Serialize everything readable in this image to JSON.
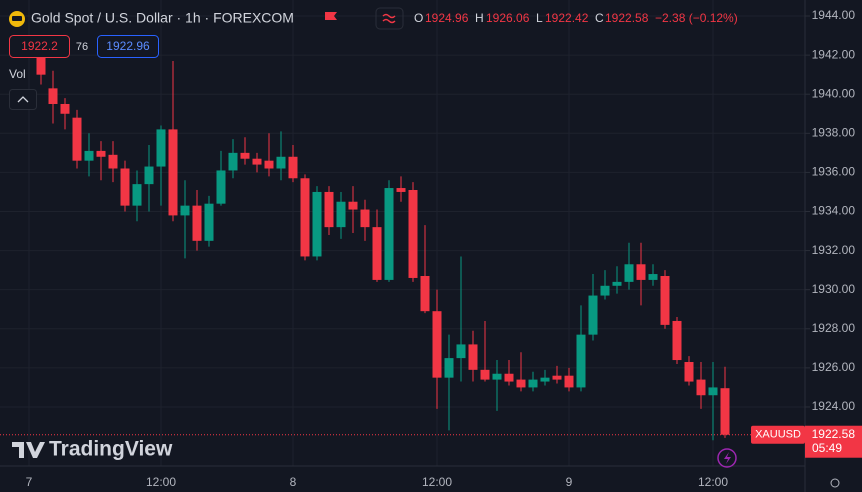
{
  "header": {
    "symbol": "Gold Spot / U.S. Dollar · 1h · FOREXCOM",
    "o_label": "O",
    "h_label": "H",
    "l_label": "L",
    "c_label": "C",
    "change": "−2.38 (−0.12%)",
    "sell_price": 1922.2,
    "spread": 76,
    "buy_price": 1922.96,
    "volume_label": "Vol"
  },
  "chart_data": {
    "type": "candlestick",
    "categories": [
      "7",
      null,
      null,
      null,
      null,
      null,
      null,
      null,
      null,
      null,
      null,
      "12:00",
      null,
      null,
      null,
      null,
      null,
      null,
      null,
      null,
      null,
      null,
      "8",
      null,
      null,
      null,
      null,
      null,
      null,
      null,
      null,
      null,
      null,
      null,
      "12:00",
      null,
      null,
      null,
      null,
      null,
      null,
      null,
      null,
      null,
      null,
      "9",
      null,
      null,
      null,
      null,
      null,
      null,
      null,
      null,
      null,
      null,
      null,
      "12:00",
      null
    ],
    "open": [
      null,
      1942.0,
      1940.3,
      1939.5,
      1938.8,
      1936.6,
      1937.1,
      1936.9,
      1936.2,
      1934.3,
      1935.4,
      1936.3,
      1938.2,
      1933.8,
      1934.3,
      1932.5,
      1934.4,
      1936.1,
      1937.0,
      1936.7,
      1936.6,
      1936.2,
      1936.8,
      1935.7,
      1931.7,
      1935.0,
      1933.2,
      1934.5,
      1934.1,
      1933.2,
      1930.5,
      1935.2,
      1935.1,
      1930.7,
      1928.9,
      1925.5,
      1926.5,
      1927.2,
      1925.9,
      1925.4,
      1925.7,
      1925.4,
      1925.0,
      1925.3,
      1925.6,
      1925.6,
      1925.0,
      1927.7,
      1929.7,
      1930.2,
      1930.4,
      1931.3,
      1930.5,
      1930.7,
      1928.4,
      1926.3,
      1925.4,
      1924.6,
      1924.96
    ],
    "high": [
      null,
      1942.5,
      1941.2,
      1939.8,
      1939.2,
      1938.0,
      1937.6,
      1937.6,
      1936.6,
      1936.1,
      1937.4,
      1938.4,
      1941.7,
      1935.6,
      1935.1,
      1934.8,
      1937.1,
      1937.7,
      1937.8,
      1937.0,
      1938.0,
      1938.1,
      1937.4,
      1935.9,
      1935.3,
      1935.3,
      1935.0,
      1935.3,
      1934.6,
      1934.1,
      1935.6,
      1935.8,
      1935.5,
      1933.3,
      1930.0,
      1927.7,
      1931.7,
      1927.9,
      1928.4,
      1926.4,
      1926.4,
      1926.8,
      1925.8,
      1925.9,
      1926.1,
      1926.0,
      1929.2,
      1930.8,
      1931.0,
      1931.2,
      1932.4,
      1932.4,
      1931.3,
      1931.0,
      1928.6,
      1926.6,
      1926.3,
      1926.3,
      1926.06
    ],
    "low": [
      null,
      1940.5,
      1938.5,
      1938.2,
      1936.2,
      1935.8,
      1935.6,
      1935.5,
      1934.0,
      1933.5,
      1934.0,
      1934.3,
      1933.5,
      1931.6,
      1932.0,
      1932.2,
      1934.3,
      1935.7,
      1936.4,
      1936.0,
      1935.8,
      1935.6,
      1935.5,
      1931.5,
      1931.5,
      1932.8,
      1932.6,
      1932.9,
      1932.5,
      1930.4,
      1930.4,
      1934.5,
      1930.4,
      1928.8,
      1923.9,
      1922.8,
      1925.3,
      1925.3,
      1925.3,
      1923.8,
      1925.1,
      1924.8,
      1924.8,
      1925.1,
      1925.2,
      1924.8,
      1924.8,
      1927.4,
      1929.5,
      1929.8,
      1930.0,
      1929.2,
      1930.2,
      1928.0,
      1926.2,
      1925.1,
      1923.9,
      1922.3,
      1922.42
    ],
    "close": [
      null,
      1941.0,
      1939.5,
      1939.0,
      1936.6,
      1937.1,
      1936.8,
      1936.2,
      1934.3,
      1935.4,
      1936.3,
      1938.2,
      1933.8,
      1934.3,
      1932.5,
      1934.4,
      1936.1,
      1937.0,
      1936.7,
      1936.4,
      1936.2,
      1936.8,
      1935.7,
      1931.7,
      1935.0,
      1933.2,
      1934.5,
      1934.1,
      1933.2,
      1930.5,
      1935.2,
      1935.0,
      1930.6,
      1928.9,
      1925.5,
      1926.5,
      1927.2,
      1925.9,
      1925.4,
      1925.7,
      1925.3,
      1925.0,
      1925.4,
      1925.5,
      1925.4,
      1925.0,
      1927.7,
      1929.7,
      1930.2,
      1930.4,
      1931.3,
      1930.5,
      1930.8,
      1928.2,
      1926.4,
      1925.3,
      1924.6,
      1925.0,
      1922.58
    ],
    "up_color": "#089981",
    "down_color": "#f23645",
    "ylim": [
      1920.98,
      1944.82
    ],
    "yticks": [
      {
        "value": 1924,
        "label": "1924.00"
      },
      {
        "value": 1926,
        "label": "1926.00"
      },
      {
        "value": 1928,
        "label": "1928.00"
      },
      {
        "value": 1930,
        "label": "1930.00"
      },
      {
        "value": 1932,
        "label": "1932.00"
      },
      {
        "value": 1934,
        "label": "1934.00"
      },
      {
        "value": 1936,
        "label": "1936.00"
      },
      {
        "value": 1938,
        "label": "1938.00"
      },
      {
        "value": 1940,
        "label": "1940.00"
      },
      {
        "value": 1942,
        "label": "1942.00"
      },
      {
        "value": 1944,
        "label": "1944.00"
      }
    ],
    "grid": true,
    "symbol_tag": "XAUUSD",
    "countdown": "05:49",
    "watermark": "TradingView"
  }
}
